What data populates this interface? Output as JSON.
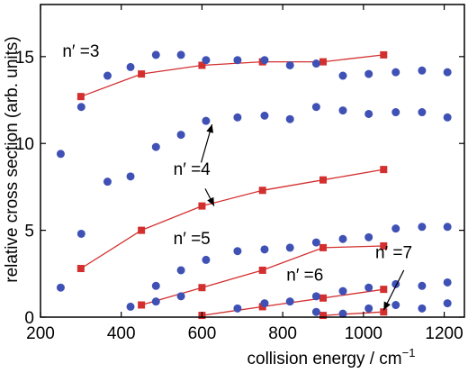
{
  "chart_data": {
    "type": "scatter",
    "xlabel": "collision energy / cm",
    "xlabel_superscript": "−1",
    "ylabel": "relative cross section (arb. units)",
    "xlim": [
      200,
      1250
    ],
    "ylim": [
      0,
      18
    ],
    "x_ticks": [
      "200",
      "400",
      "600",
      "800",
      "1000",
      "1200"
    ],
    "y_ticks": [
      "0",
      "5",
      "10",
      "15"
    ],
    "x_tick_values": [
      200,
      400,
      600,
      800,
      1000,
      1200
    ],
    "y_tick_values": [
      0,
      5,
      10,
      15
    ],
    "grid": false,
    "colors": {
      "points": "#3f51b5",
      "lines": "#d32f2f",
      "axis": "#000000"
    },
    "scatter_series": [
      {
        "x": [
          250,
          301,
          366,
          423,
          486,
          548,
          610,
          688,
          755,
          818,
          883,
          949,
          1013,
          1080,
          1145,
          1208
        ],
        "y": [
          9.4,
          12.1,
          7.8,
          8.1,
          9.8,
          10.5,
          11.3,
          11.5,
          11.6,
          11.4,
          12.1,
          11.9,
          11.7,
          11.8,
          11.8,
          11.5
        ]
      },
      {
        "x": [
          301,
          366,
          423,
          486,
          548,
          610,
          688,
          755,
          818,
          883,
          949,
          1013,
          1080,
          1145,
          1208
        ],
        "y": [
          4.8,
          13.9,
          14.4,
          15.1,
          15.1,
          14.8,
          14.8,
          14.8,
          14.5,
          14.6,
          13.9,
          14.0,
          14.1,
          14.2,
          14.1
        ]
      },
      {
        "x": [
          250,
          423,
          486,
          548,
          610,
          688,
          755,
          818,
          883,
          949,
          1013,
          1080,
          1145,
          1208
        ],
        "y": [
          1.7,
          0.6,
          1.8,
          2.7,
          3.3,
          3.8,
          3.9,
          4.0,
          4.3,
          4.5,
          4.6,
          5.1,
          5.2,
          5.2
        ]
      },
      {
        "x": [
          486,
          548,
          688,
          755,
          818,
          883,
          949,
          1013,
          1080,
          1145,
          1208
        ],
        "y": [
          0.9,
          1.2,
          0.5,
          0.8,
          0.9,
          1.2,
          1.5,
          1.7,
          1.9,
          1.8,
          2.0
        ]
      },
      {
        "x": [
          883,
          949,
          1013,
          1080,
          1145,
          1208
        ],
        "y": [
          0.3,
          0.2,
          0.5,
          0.7,
          0.5,
          0.8
        ]
      }
    ],
    "line_series": [
      {
        "x": [
          300,
          450,
          600,
          750,
          900,
          1050
        ],
        "y": [
          12.7,
          14.0,
          14.5,
          14.7,
          14.7,
          15.1
        ]
      },
      {
        "x": [
          300,
          450,
          600,
          750,
          900,
          1050
        ],
        "y": [
          2.8,
          5.0,
          6.4,
          7.3,
          7.9,
          8.5
        ]
      },
      {
        "x": [
          450,
          600,
          750,
          900,
          1050
        ],
        "y": [
          0.7,
          1.7,
          2.7,
          4.0,
          4.1
        ]
      },
      {
        "x": [
          600,
          750,
          900,
          1050
        ],
        "y": [
          0.1,
          0.6,
          1.1,
          1.6
        ]
      },
      {
        "x": [
          900,
          1050
        ],
        "y": [
          0.1,
          0.3
        ]
      }
    ],
    "annotations": [
      {
        "text": "n′ =3",
        "x": 300,
        "y": 15.0
      },
      {
        "text": "n′ =4",
        "x": 575,
        "y": 8.2
      },
      {
        "text": "n′ =5",
        "x": 575,
        "y": 4.2
      },
      {
        "text": "n′ =6",
        "x": 855,
        "y": 2.1
      },
      {
        "text": "n′ =7",
        "x": 1075,
        "y": 3.4
      }
    ],
    "arrows": [
      {
        "from": [
          598,
          8.9
        ],
        "to": [
          625,
          11.1
        ]
      },
      {
        "from": [
          608,
          7.4
        ],
        "to": [
          630,
          6.4
        ]
      },
      {
        "from": [
          1100,
          2.7
        ],
        "to": [
          1050,
          0.4
        ]
      }
    ]
  }
}
